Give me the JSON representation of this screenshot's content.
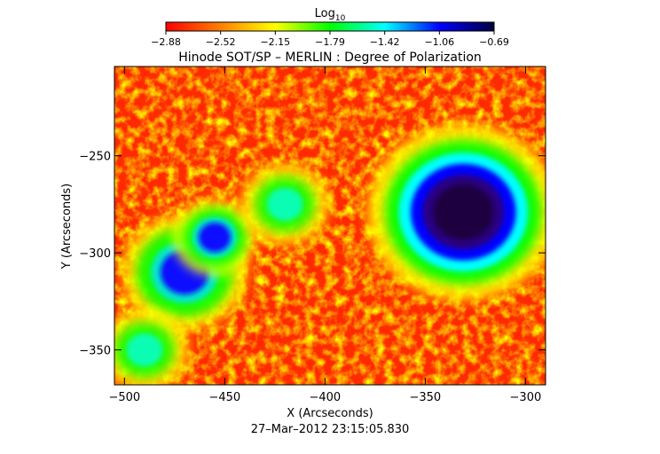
{
  "chart_data": {
    "type": "heatmap",
    "title": "Hinode SOT/SP – MERLIN : Degree of Polarization",
    "xlabel": "X (Arcseconds)",
    "ylabel": "Y (Arcseconds)",
    "timestamp": "27–Mar–2012 23:15:05.830",
    "colorbar": {
      "label_base": "Log",
      "label_sub": "10",
      "ticks": [
        "−2.88",
        "−2.52",
        "−2.15",
        "−1.79",
        "−1.42",
        "−1.06",
        "−0.69"
      ],
      "range": [
        -2.88,
        -0.69
      ],
      "colormap": [
        "#ff0000",
        "#ff8000",
        "#ffff00",
        "#00ff00",
        "#00ffff",
        "#0000ff",
        "#000040"
      ]
    },
    "xlim": [
      -505,
      -290
    ],
    "ylim": [
      -368,
      -204
    ],
    "x_ticks": [
      {
        "value": -500,
        "label": "−500"
      },
      {
        "value": -450,
        "label": "−450"
      },
      {
        "value": -400,
        "label": "−400"
      },
      {
        "value": -350,
        "label": "−350"
      },
      {
        "value": -300,
        "label": "−300"
      }
    ],
    "y_ticks": [
      {
        "value": -250,
        "label": "−250"
      },
      {
        "value": -300,
        "label": "−300"
      },
      {
        "value": -350,
        "label": "−350"
      }
    ],
    "features": [
      {
        "kind": "sunspot_umbra",
        "x": -331,
        "y": -279,
        "r": 15
      },
      {
        "kind": "plage",
        "x": -470,
        "y": -310,
        "r": 12
      },
      {
        "kind": "plage",
        "x": -455,
        "y": -292,
        "r": 8
      },
      {
        "kind": "network",
        "x": -420,
        "y": -275,
        "r": 10
      },
      {
        "kind": "network",
        "x": -490,
        "y": -350,
        "r": 10
      }
    ]
  }
}
